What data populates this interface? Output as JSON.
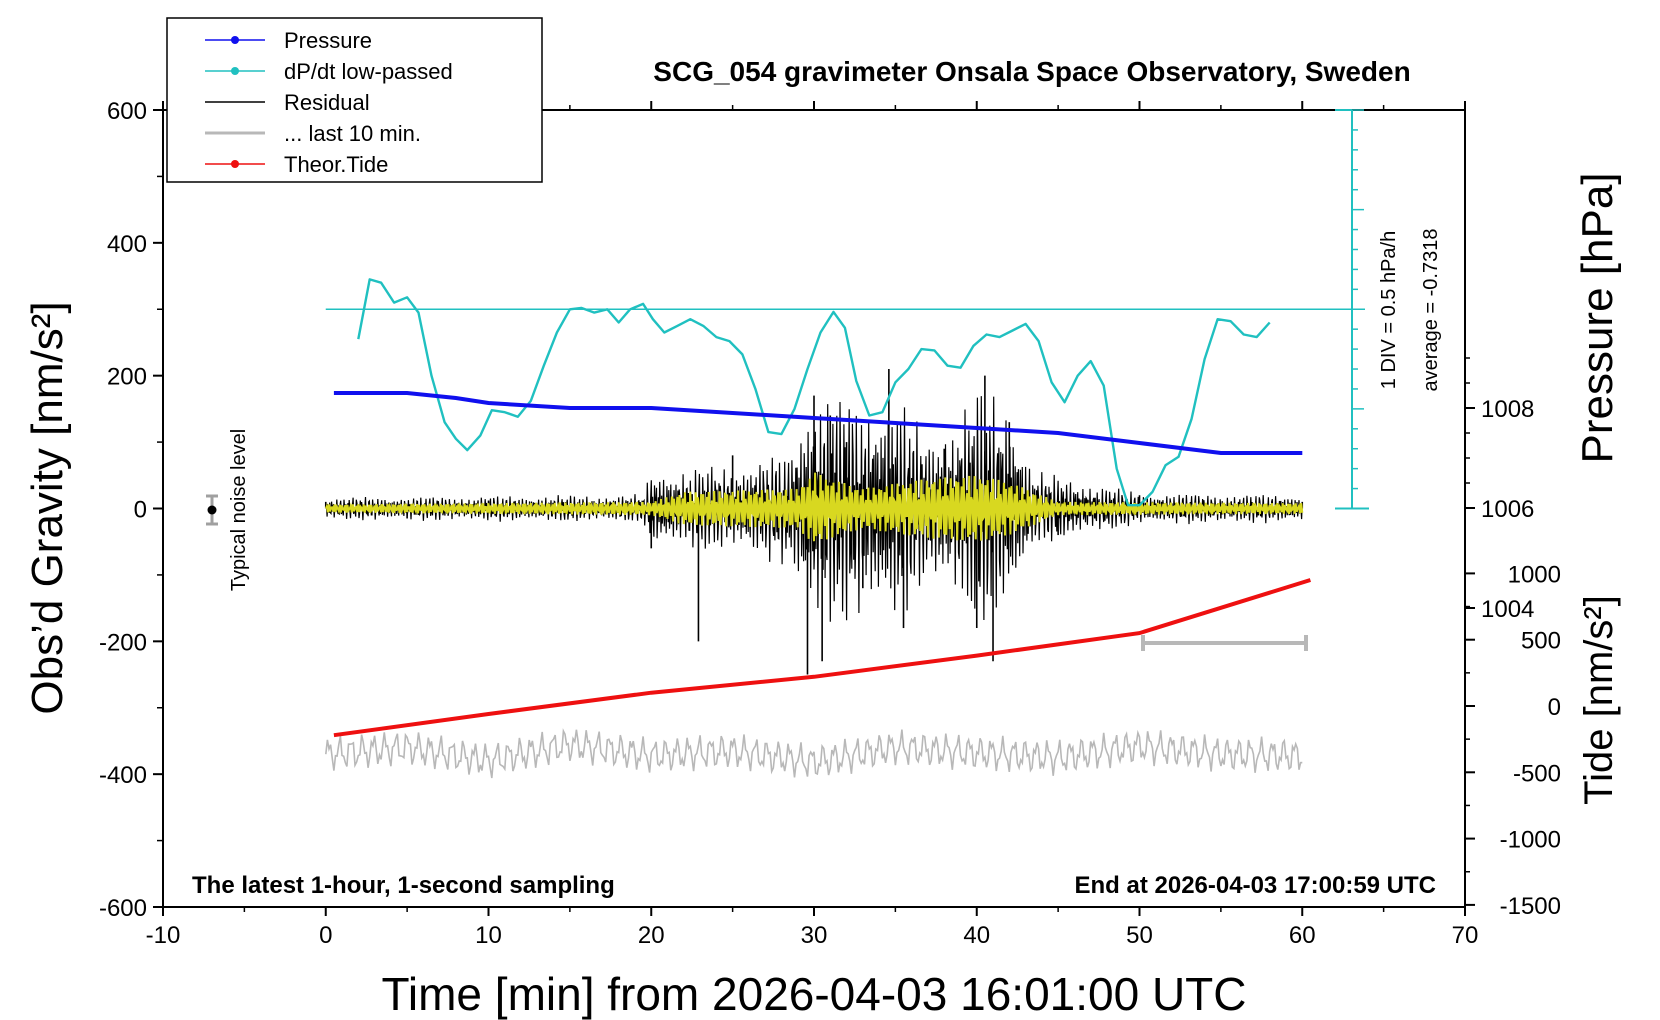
{
  "chart_data": {
    "type": "line",
    "title": "SCG_054 gravimeter Onsala Space Observatory, Sweden",
    "xlabel": "Time [min] from 2026-04-03 16:01:00 UTC",
    "ylabel_left": "Obs’d Gravity [nm/s²]",
    "ylabel_right_top": "Pressure [hPa]",
    "ylabel_right_bottom": "Tide [nm/s²]",
    "xlim": [
      -10,
      70
    ],
    "ylim": [
      -600,
      600
    ],
    "x_ticks": [
      "-10",
      "0",
      "10",
      "20",
      "30",
      "40",
      "50",
      "60",
      "70"
    ],
    "y_ticks_left": [
      "600",
      "400",
      "200",
      "0",
      "-200",
      "-400",
      "-600"
    ],
    "pressure_ticks": [
      "1008",
      "1006",
      "1004"
    ],
    "tide_ticks": [
      "1000",
      "500",
      "0",
      "-500",
      "-1000",
      "-1500"
    ],
    "legend": {
      "position": "top-left",
      "entries": [
        {
          "label": "Pressure",
          "color": "#1010ee",
          "marker": true
        },
        {
          "label": "dP/dt low-passed",
          "color": "#20c0c0",
          "marker": true
        },
        {
          "label": "Residual",
          "color": "#000000",
          "marker": false
        },
        {
          "label": "... last 10 min.",
          "color": "#b8b8b8",
          "marker": false
        },
        {
          "label": "Theor.Tide",
          "color": "#ee1010",
          "marker": true
        }
      ]
    },
    "annotations": {
      "noise": "Typical noise level",
      "div": "1 DIV = 0.5 hPa/h",
      "average": "average = -0.7318",
      "bottom_left": "The latest 1-hour, 1-second sampling",
      "bottom_right": "End at 2026-04-03 17:00:59 UTC"
    },
    "series": [
      {
        "name": "Pressure",
        "color": "#1010ee",
        "unit": "hPa",
        "x": [
          0.5,
          5,
          8,
          10,
          15,
          20,
          25,
          30,
          35,
          40,
          45,
          50,
          55,
          60
        ],
        "values": [
          1008.3,
          1008.3,
          1008.2,
          1008.1,
          1008.0,
          1008.0,
          1007.9,
          1007.8,
          1007.7,
          1007.6,
          1007.5,
          1007.3,
          1007.1,
          1007.1
        ]
      },
      {
        "name": "dP/dt low-passed",
        "color": "#20c0c0",
        "unit": "nm/s² (plot scale)",
        "x": [
          2,
          2.7,
          3.4,
          4.2,
          5,
          5.7,
          6.5,
          7.3,
          8,
          8.7,
          9.5,
          10.2,
          11,
          11.8,
          12.6,
          13.4,
          14.2,
          15,
          15.7,
          16.5,
          17.3,
          18,
          18.7,
          19.5,
          20.1,
          20.8,
          21.6,
          22.4,
          23.2,
          24,
          24.8,
          25.6,
          26.4,
          27.2,
          28,
          28.8,
          29.6,
          30.4,
          31.2,
          31.9,
          32.6,
          33.4,
          34.2,
          35,
          35.8,
          36.6,
          37.4,
          38.2,
          39,
          39.8,
          40.6,
          41.4,
          42.2,
          43,
          43.8,
          44.6,
          45.4,
          46.2,
          47,
          47.8,
          48.6,
          49.3,
          50,
          50.8,
          51.6,
          52.4,
          53.2,
          54,
          54.8,
          55.6,
          56.4,
          57.2,
          58
        ],
        "values": [
          255,
          345,
          340,
          310,
          318,
          295,
          200,
          130,
          105,
          88,
          110,
          148,
          145,
          138,
          162,
          215,
          265,
          300,
          302,
          295,
          300,
          280,
          300,
          308,
          285,
          265,
          275,
          285,
          275,
          258,
          252,
          232,
          180,
          115,
          112,
          150,
          210,
          265,
          296,
          272,
          192,
          140,
          145,
          190,
          210,
          240,
          238,
          215,
          212,
          245,
          262,
          258,
          268,
          278,
          252,
          190,
          160,
          200,
          222,
          185,
          60,
          5,
          5,
          25,
          65,
          78,
          135,
          225,
          285,
          282,
          262,
          258,
          280
        ]
      },
      {
        "name": "Residual",
        "color": "#000000",
        "unit": "nm/s²",
        "x": [
          0,
          5,
          10,
          15,
          20,
          22.9,
          25,
          29.6,
          30,
          30.5,
          31,
          32,
          33,
          34.6,
          35.5,
          38,
          40,
          40.5,
          41,
          42,
          45,
          50,
          55,
          60
        ],
        "values": [
          10,
          -15,
          12,
          -8,
          -60,
          -200,
          80,
          -250,
          170,
          -230,
          140,
          100,
          -120,
          210,
          -180,
          90,
          -180,
          200,
          -230,
          130,
          -40,
          20,
          -15,
          10
        ]
      },
      {
        "name": "... last 10 min.",
        "color": "#b8b8b8",
        "unit": "nm/s²",
        "x": [
          0,
          5,
          10,
          15,
          20,
          25,
          30,
          35,
          40,
          45,
          50,
          55,
          60
        ],
        "values": [
          -370,
          -360,
          -380,
          -355,
          -372,
          -365,
          -382,
          -360,
          -368,
          -375,
          -358,
          -370,
          -372
        ]
      },
      {
        "name": "Theor.Tide",
        "color": "#ee1010",
        "unit": "nm/s² (right tide axis)",
        "x": [
          0.5,
          10,
          20,
          30,
          40,
          50,
          60.5
        ],
        "values": [
          -22,
          -6,
          10,
          22,
          38,
          55,
          95
        ]
      }
    ]
  }
}
